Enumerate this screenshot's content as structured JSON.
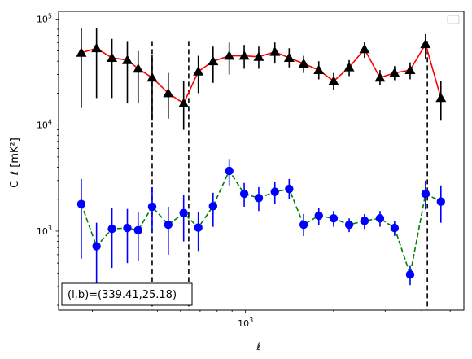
{
  "chart_data": {
    "type": "scatter",
    "xscale": "log",
    "yscale": "log",
    "xlabel": "ℓ",
    "ylabel": "C_ℓ  [mK²]",
    "xlim": [
      230,
      5570
    ],
    "ylim": [
      180,
      118000
    ],
    "xtick_labels": [
      {
        "value": 1000,
        "base": "10",
        "exp": "3"
      }
    ],
    "ytick_labels": [
      {
        "value": 1000,
        "base": "10",
        "exp": "3"
      },
      {
        "value": 10000,
        "base": "10",
        "exp": "4"
      },
      {
        "value": 100000,
        "base": "10",
        "exp": "5"
      }
    ],
    "annotation": "(l,b)=(339.41,25.18)",
    "legend": {
      "position": "top-right",
      "entries": []
    },
    "vlines": [
      480,
      640,
      4180
    ],
    "series": [
      {
        "color": "#000000",
        "line_color": "#ff0000",
        "line_style": "solid",
        "marker": "triangle",
        "points": [
          {
            "x": 275,
            "y": 48000,
            "lo": 14500,
            "hi": 82000
          },
          {
            "x": 310,
            "y": 53000,
            "lo": 18000,
            "hi": 82000
          },
          {
            "x": 350,
            "y": 43000,
            "lo": 18000,
            "hi": 65000
          },
          {
            "x": 395,
            "y": 41000,
            "lo": 16000,
            "hi": 62000
          },
          {
            "x": 430,
            "y": 34000,
            "lo": 16000,
            "hi": 50000
          },
          {
            "x": 480,
            "y": 28000,
            "lo": 11000,
            "hi": 46000
          },
          {
            "x": 545,
            "y": 20000,
            "lo": 11500,
            "hi": 31000
          },
          {
            "x": 615,
            "y": 16000,
            "lo": 9000,
            "hi": 26000
          },
          {
            "x": 690,
            "y": 32000,
            "lo": 20000,
            "hi": 45000
          },
          {
            "x": 775,
            "y": 40000,
            "lo": 25000,
            "hi": 55000
          },
          {
            "x": 880,
            "y": 45000,
            "lo": 30000,
            "hi": 60000
          },
          {
            "x": 990,
            "y": 45000,
            "lo": 34000,
            "hi": 57000
          },
          {
            "x": 1110,
            "y": 44000,
            "lo": 34000,
            "hi": 55000
          },
          {
            "x": 1260,
            "y": 49000,
            "lo": 38000,
            "hi": 60000
          },
          {
            "x": 1410,
            "y": 43000,
            "lo": 35000,
            "hi": 53000
          },
          {
            "x": 1580,
            "y": 38000,
            "lo": 31000,
            "hi": 45000
          },
          {
            "x": 1780,
            "y": 33000,
            "lo": 27000,
            "hi": 40000
          },
          {
            "x": 2000,
            "y": 26000,
            "lo": 21500,
            "hi": 31000
          },
          {
            "x": 2260,
            "y": 35000,
            "lo": 29000,
            "hi": 41000
          },
          {
            "x": 2550,
            "y": 52000,
            "lo": 43000,
            "hi": 61000
          },
          {
            "x": 2880,
            "y": 28000,
            "lo": 24000,
            "hi": 33000
          },
          {
            "x": 3230,
            "y": 31000,
            "lo": 26500,
            "hi": 36000
          },
          {
            "x": 3650,
            "y": 33000,
            "lo": 27000,
            "hi": 39000
          },
          {
            "x": 4120,
            "y": 58000,
            "lo": 42000,
            "hi": 72000
          },
          {
            "x": 4650,
            "y": 18000,
            "lo": 11000,
            "hi": 26000
          }
        ]
      },
      {
        "color": "#0000ff",
        "line_color": "#008000",
        "line_style": "dashed",
        "marker": "circle",
        "points": [
          {
            "x": 275,
            "y": 1800,
            "lo": 550,
            "hi": 3100
          },
          {
            "x": 310,
            "y": 720,
            "lo": 250,
            "hi": 1200
          },
          {
            "x": 350,
            "y": 1050,
            "lo": 450,
            "hi": 1650
          },
          {
            "x": 395,
            "y": 1070,
            "lo": 500,
            "hi": 1620
          },
          {
            "x": 430,
            "y": 1020,
            "lo": 520,
            "hi": 1500
          },
          {
            "x": 480,
            "y": 1700,
            "lo": 1000,
            "hi": 2600
          },
          {
            "x": 545,
            "y": 1150,
            "lo": 600,
            "hi": 1700
          },
          {
            "x": 615,
            "y": 1480,
            "lo": 800,
            "hi": 2200
          },
          {
            "x": 690,
            "y": 1080,
            "lo": 650,
            "hi": 1500
          },
          {
            "x": 775,
            "y": 1720,
            "lo": 1100,
            "hi": 2300
          },
          {
            "x": 880,
            "y": 3700,
            "lo": 2700,
            "hi": 4800
          },
          {
            "x": 990,
            "y": 2250,
            "lo": 1700,
            "hi": 2850
          },
          {
            "x": 1110,
            "y": 2050,
            "lo": 1550,
            "hi": 2600
          },
          {
            "x": 1260,
            "y": 2350,
            "lo": 1800,
            "hi": 2900
          },
          {
            "x": 1410,
            "y": 2500,
            "lo": 2000,
            "hi": 3100
          },
          {
            "x": 1580,
            "y": 1150,
            "lo": 900,
            "hi": 1450
          },
          {
            "x": 1780,
            "y": 1400,
            "lo": 1150,
            "hi": 1650
          },
          {
            "x": 2000,
            "y": 1320,
            "lo": 1100,
            "hi": 1550
          },
          {
            "x": 2260,
            "y": 1150,
            "lo": 980,
            "hi": 1320
          },
          {
            "x": 2550,
            "y": 1250,
            "lo": 1050,
            "hi": 1450
          },
          {
            "x": 2880,
            "y": 1320,
            "lo": 1100,
            "hi": 1550
          },
          {
            "x": 3230,
            "y": 1070,
            "lo": 900,
            "hi": 1250
          },
          {
            "x": 3650,
            "y": 390,
            "lo": 310,
            "hi": 470
          },
          {
            "x": 4120,
            "y": 2250,
            "lo": 1600,
            "hi": 3000
          },
          {
            "x": 4650,
            "y": 1900,
            "lo": 1200,
            "hi": 2700
          }
        ]
      }
    ]
  }
}
